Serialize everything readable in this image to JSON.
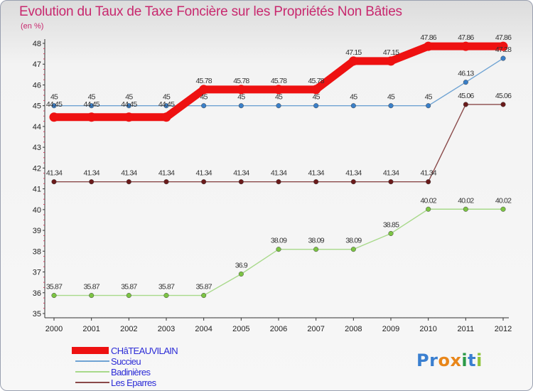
{
  "title": "Evolution du Taux de Taxe Foncière sur les Propriétés Non Bâties",
  "unit": "(en %)",
  "logo": {
    "letters": [
      "P",
      "r",
      "o",
      "x",
      "i",
      "t",
      "i"
    ],
    "colors": [
      "#3a7fd0",
      "#3a7fd0",
      "#e8861a",
      "#e8861a",
      "#2c9a48",
      "#3a7fd0",
      "#8fc43a"
    ]
  },
  "chart_data": {
    "type": "line",
    "title": "Evolution du Taux de Taxe Foncière sur les Propriétés Non Bâties",
    "ylabel": "(en %)",
    "xlabel": "",
    "x": [
      "2000",
      "2001",
      "2002",
      "2003",
      "2004",
      "2005",
      "2006",
      "2007",
      "2008",
      "2009",
      "2010",
      "2011",
      "2012"
    ],
    "ylim": [
      35,
      48
    ],
    "yticks": [
      "35",
      "36",
      "37",
      "38",
      "39",
      "40",
      "41",
      "42",
      "43",
      "44",
      "45",
      "46",
      "47",
      "48"
    ],
    "grid": false,
    "legend": "bottom-left",
    "series": [
      {
        "name": "CHâTEAUVILAIN",
        "color": "#ee1111",
        "emphasis": true,
        "values": [
          44.45,
          44.45,
          44.45,
          44.45,
          45.78,
          45.78,
          45.78,
          45.78,
          47.15,
          47.15,
          47.86,
          47.86,
          47.86
        ],
        "labels": [
          "44.45",
          "44.45",
          "44.45",
          "44.45",
          "45.78",
          "45.78",
          "45.78",
          "45.78",
          "47.15",
          "47.15",
          "47.86",
          "47.86",
          "47.86"
        ]
      },
      {
        "name": "Succieu",
        "color": "#6fa3d3",
        "point_color": "#3a7fc8",
        "values": [
          45,
          45,
          45,
          45,
          45,
          45,
          45,
          45,
          45,
          45,
          45,
          46.13,
          47.28
        ],
        "labels": [
          "45",
          "45",
          "45",
          "45",
          "45",
          "45",
          "45",
          "45",
          "45",
          "45",
          "45",
          "46.13",
          "47.28"
        ]
      },
      {
        "name": "Badinières",
        "color": "#a8d98a",
        "point_color": "#7cc443",
        "values": [
          35.87,
          35.87,
          35.87,
          35.87,
          35.87,
          36.9,
          38.09,
          38.09,
          38.09,
          38.85,
          40.02,
          40.02,
          40.02
        ],
        "labels": [
          "35.87",
          "35.87",
          "35.87",
          "35.87",
          "35.87",
          "36.9",
          "38.09",
          "38.09",
          "38.09",
          "38.85",
          "40.02",
          "40.02",
          "40.02"
        ]
      },
      {
        "name": "Les Eparres",
        "color": "#8a4a4a",
        "point_color": "#6a1a1a",
        "values": [
          41.34,
          41.34,
          41.34,
          41.34,
          41.34,
          41.34,
          41.34,
          41.34,
          41.34,
          41.34,
          41.34,
          45.06,
          45.06
        ],
        "labels": [
          "41.34",
          "41.34",
          "41.34",
          "41.34",
          "41.34",
          "41.34",
          "41.34",
          "41.34",
          "41.34",
          "41.34",
          "41.34",
          "45.06",
          "45.06"
        ]
      }
    ]
  }
}
